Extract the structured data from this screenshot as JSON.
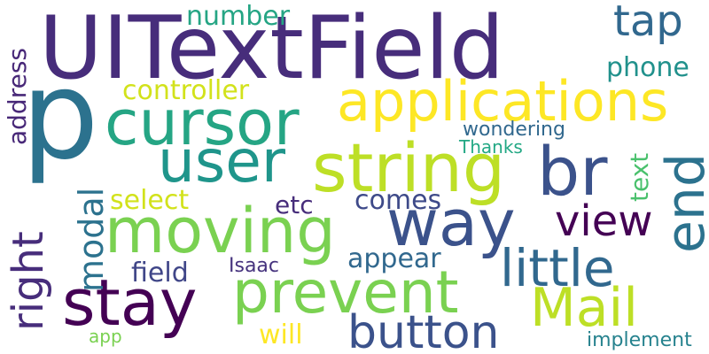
{
  "words": [
    {
      "id": "uitextfield",
      "text": "UITextField",
      "color": "#472d7b"
    },
    {
      "id": "p",
      "text": "p",
      "color": "#2c728e"
    },
    {
      "id": "cursor",
      "text": "cursor",
      "color": "#25a584"
    },
    {
      "id": "applications",
      "text": "applications",
      "color": "#fde725"
    },
    {
      "id": "user",
      "text": "user",
      "color": "#1f958b"
    },
    {
      "id": "string",
      "text": "string",
      "color": "#bddf26"
    },
    {
      "id": "br",
      "text": "br",
      "color": "#3b528b"
    },
    {
      "id": "end",
      "text": "end",
      "color": "#2c728e"
    },
    {
      "id": "moving",
      "text": "moving",
      "color": "#7ad151"
    },
    {
      "id": "way",
      "text": "way",
      "color": "#3b528b"
    },
    {
      "id": "view",
      "text": "view",
      "color": "#440154"
    },
    {
      "id": "little",
      "text": "little",
      "color": "#31688e"
    },
    {
      "id": "prevent",
      "text": "prevent",
      "color": "#7ad151"
    },
    {
      "id": "stay",
      "text": "stay",
      "color": "#440154"
    },
    {
      "id": "mail",
      "text": "Mail",
      "color": "#bddf26"
    },
    {
      "id": "button",
      "text": "button",
      "color": "#3b528b"
    },
    {
      "id": "right",
      "text": "right",
      "color": "#472d7b"
    },
    {
      "id": "modal",
      "text": "modal",
      "color": "#2c728e"
    },
    {
      "id": "tap",
      "text": "tap",
      "color": "#31688e"
    },
    {
      "id": "phone",
      "text": "phone",
      "color": "#21918c"
    },
    {
      "id": "number",
      "text": "number",
      "color": "#25a584"
    },
    {
      "id": "controller",
      "text": "controller",
      "color": "#d2e21b"
    },
    {
      "id": "address",
      "text": "address",
      "color": "#482878"
    },
    {
      "id": "wondering",
      "text": "wondering",
      "color": "#31688e"
    },
    {
      "id": "thanks",
      "text": "Thanks",
      "color": "#22a884"
    },
    {
      "id": "text",
      "text": "text",
      "color": "#4ac16d"
    },
    {
      "id": "select",
      "text": "select",
      "color": "#d2e21b"
    },
    {
      "id": "etc",
      "text": "etc",
      "color": "#472d7b"
    },
    {
      "id": "comes",
      "text": "comes",
      "color": "#3e4a89"
    },
    {
      "id": "appear",
      "text": "appear",
      "color": "#31688e"
    },
    {
      "id": "field",
      "text": "field",
      "color": "#404688"
    },
    {
      "id": "isaac",
      "text": "Isaac",
      "color": "#46337e"
    },
    {
      "id": "will",
      "text": "will",
      "color": "#fde725"
    },
    {
      "id": "app",
      "text": "app",
      "color": "#7ad151"
    },
    {
      "id": "implement",
      "text": "implement",
      "color": "#26828e"
    }
  ]
}
